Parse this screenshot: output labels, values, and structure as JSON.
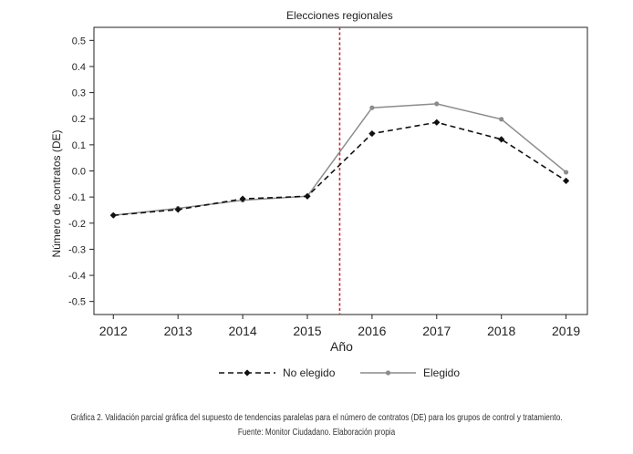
{
  "chart_data": {
    "type": "line",
    "title": "",
    "xlabel": "Año",
    "ylabel": "Número de contratos (DE)",
    "x": [
      2012,
      2013,
      2014,
      2015,
      2016,
      2017,
      2018,
      2019
    ],
    "xticks": [
      "2012",
      "2013",
      "2014",
      "2015",
      "2016",
      "2017",
      "2018",
      "2019"
    ],
    "xlim": [
      2011.7,
      2019.33
    ],
    "ylim": [
      -0.55,
      0.55
    ],
    "yticks": [
      0.5,
      0.4,
      0.3,
      0.2,
      0.1,
      0.0,
      -0.1,
      -0.2,
      -0.3,
      -0.4,
      -0.5
    ],
    "ytick_labels": [
      "0.5",
      "0.4",
      "0.3",
      "0.2",
      "0.1",
      "0.0",
      "-0.1",
      "-0.2",
      "-0.3",
      "-0.4",
      "-0.5"
    ],
    "grid": false,
    "series": [
      {
        "name": "No elegido",
        "style": "dashed",
        "marker": "diamond",
        "color": "#111111",
        "values": [
          -0.17,
          -0.148,
          -0.107,
          -0.097,
          0.143,
          0.186,
          0.121,
          -0.038
        ]
      },
      {
        "name": "Elegido",
        "style": "solid",
        "marker": "circle",
        "color": "#8c8c8c",
        "values": [
          -0.17,
          -0.143,
          -0.112,
          -0.097,
          0.242,
          0.257,
          0.198,
          -0.005
        ]
      }
    ],
    "vline": {
      "x": 2015.5,
      "label": "Elecciones regionales",
      "color": "#c8283c"
    },
    "legend_position": "bottom"
  },
  "caption": {
    "line1": "Gráfica 2. Validación parcial gráfica del supuesto de tendencias paralelas para el número de contratos (DE) para los grupos de control y tratamiento.",
    "line2": "Fuente: Monitor Ciudadano. Elaboración propia"
  }
}
